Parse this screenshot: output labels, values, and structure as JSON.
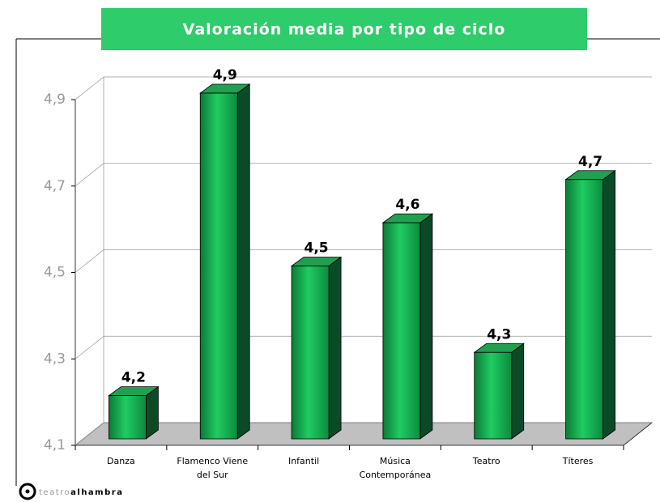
{
  "chart_data": {
    "type": "bar3d",
    "title": "Valoración media por tipo de ciclo",
    "categories": [
      "Danza",
      "Flamenco Viene del Sur",
      "Infantil",
      "Música Contemporánea",
      "Teatro",
      "Títeres"
    ],
    "values": [
      4.2,
      4.9,
      4.5,
      4.6,
      4.3,
      4.7
    ],
    "value_labels": [
      "4,2",
      "4,9",
      "4,5",
      "4,6",
      "4,3",
      "4,7"
    ],
    "color": "#14b04e",
    "ylim": [
      4.1,
      4.9
    ],
    "yticks": [
      {
        "value": 4.1,
        "label": "4,1"
      },
      {
        "value": 4.3,
        "label": "4,3"
      },
      {
        "value": 4.5,
        "label": "4,5"
      },
      {
        "value": 4.7,
        "label": "4,7"
      },
      {
        "value": 4.9,
        "label": "4,9"
      }
    ],
    "grid": true
  },
  "logo": {
    "prefix": "teatro",
    "name": "alhambra"
  }
}
